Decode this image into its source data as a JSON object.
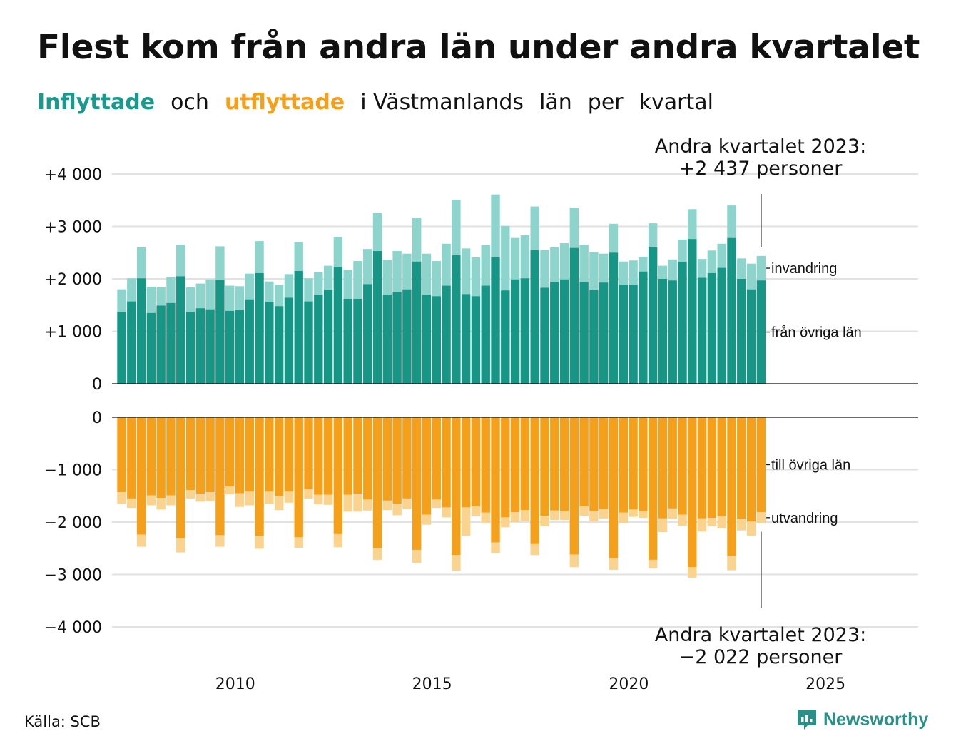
{
  "title": "Flest kom från andra län under andra kvartalet",
  "subtitle": {
    "part1": "Inflyttade",
    "part2": "och",
    "part3": "utflyttade",
    "part4": "i Västmanlands",
    "part5": "län",
    "part6": "per",
    "part7": "kvartal"
  },
  "source": "Källa: SCB",
  "brand": {
    "name": "Newsworthy",
    "icon": "newsworthy-chart-icon"
  },
  "colors": {
    "inflow_dark": "#179585",
    "inflow_light": "#8dd5cc",
    "outflow_dark": "#f5a01b",
    "outflow_light": "#fad38e"
  },
  "chart_data": {
    "type": "bar",
    "stacked": true,
    "x_start": "2007 Q1",
    "x_tick_labels": [
      "2010",
      "2015",
      "2020",
      "2025"
    ],
    "top_panel": {
      "ylim": [
        0,
        4000
      ],
      "y_tick_labels": [
        "0",
        "+1 000",
        "+2 000",
        "+3 000",
        "+4 000"
      ],
      "series": [
        {
          "name": "från övriga län",
          "values": [
            1370,
            1570,
            2010,
            1350,
            1490,
            1540,
            2050,
            1370,
            1440,
            1420,
            1980,
            1390,
            1410,
            1610,
            2110,
            1560,
            1480,
            1640,
            2150,
            1570,
            1690,
            1790,
            2230,
            1620,
            1620,
            1900,
            2530,
            1700,
            1750,
            1800,
            2330,
            1700,
            1670,
            1870,
            2450,
            1710,
            1670,
            1870,
            2410,
            1780,
            1990,
            2010,
            2550,
            1830,
            1940,
            1990,
            2590,
            1940,
            1790,
            1930,
            2500,
            1890,
            1890,
            2140,
            2600,
            2000,
            1970,
            2320,
            2760,
            2020,
            2110,
            2210,
            2780,
            2000,
            1800,
            1970
          ]
        },
        {
          "name": "invandring",
          "values": [
            430,
            440,
            590,
            500,
            350,
            490,
            600,
            470,
            470,
            570,
            640,
            480,
            450,
            490,
            610,
            390,
            410,
            450,
            550,
            440,
            440,
            460,
            570,
            550,
            720,
            670,
            730,
            660,
            780,
            680,
            840,
            780,
            670,
            800,
            1060,
            870,
            740,
            770,
            1200,
            1230,
            790,
            820,
            830,
            720,
            660,
            690,
            770,
            710,
            720,
            550,
            550,
            440,
            460,
            280,
            460,
            250,
            400,
            430,
            570,
            360,
            430,
            460,
            620,
            390,
            490,
            467
          ]
        }
      ],
      "annotation": {
        "line1": "Andra kvartalet 2023:",
        "line2": "+2 437 personer"
      }
    },
    "bottom_panel": {
      "ylim": [
        -4000,
        0
      ],
      "y_tick_labels": [
        "0",
        "−1 000",
        "−2 000",
        "−3 000",
        "−4 000"
      ],
      "series": [
        {
          "name": "till övriga län",
          "values": [
            -1430,
            -1550,
            -2240,
            -1490,
            -1540,
            -1490,
            -2310,
            -1390,
            -1460,
            -1430,
            -2250,
            -1320,
            -1450,
            -1420,
            -2260,
            -1420,
            -1500,
            -1420,
            -2290,
            -1370,
            -1480,
            -1480,
            -2230,
            -1480,
            -1460,
            -1570,
            -2500,
            -1590,
            -1650,
            -1550,
            -2530,
            -1860,
            -1570,
            -1720,
            -2630,
            -1720,
            -1700,
            -1820,
            -2390,
            -1910,
            -1810,
            -1770,
            -2420,
            -1880,
            -1780,
            -1790,
            -2620,
            -1700,
            -1790,
            -1750,
            -2690,
            -1820,
            -1760,
            -1790,
            -2720,
            -1930,
            -1740,
            -1860,
            -2860,
            -1930,
            -1920,
            -1890,
            -2640,
            -1940,
            -1990,
            -1810
          ]
        },
        {
          "name": "utvandring",
          "values": [
            -220,
            -180,
            -230,
            -190,
            -220,
            -190,
            -270,
            -160,
            -150,
            -170,
            -220,
            -150,
            -260,
            -260,
            -250,
            -230,
            -270,
            -210,
            -200,
            -180,
            -180,
            -190,
            -250,
            -320,
            -340,
            -210,
            -220,
            -180,
            -220,
            -200,
            -250,
            -190,
            -160,
            -190,
            -300,
            -540,
            -190,
            -200,
            -210,
            -190,
            -190,
            -210,
            -210,
            -200,
            -180,
            -170,
            -240,
            -180,
            -200,
            -180,
            -220,
            -200,
            -140,
            -130,
            -160,
            -260,
            -200,
            -210,
            -200,
            -250,
            -160,
            -230,
            -280,
            -220,
            -270,
            -212
          ]
        }
      ],
      "annotation": {
        "line1": "Andra kvartalet 2023:",
        "line2": "−2 022 personer"
      }
    }
  }
}
